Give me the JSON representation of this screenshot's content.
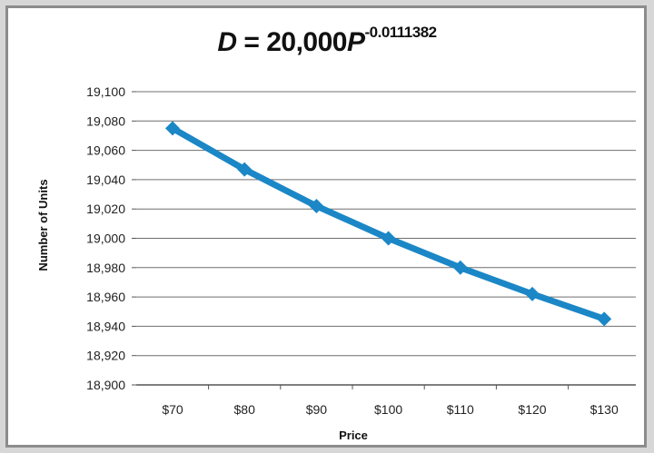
{
  "chart_data": {
    "type": "line",
    "title": {
      "var": "D",
      "eq": " = 20,000",
      "base": "P",
      "exponent": "-0.0111382"
    },
    "xlabel": "Price",
    "ylabel": "Number of Units",
    "categories": [
      "$70",
      "$80",
      "$90",
      "$100",
      "$110",
      "$120",
      "$130"
    ],
    "series": [
      {
        "values": [
          19075,
          19047,
          19022,
          19000,
          18980,
          18962,
          18945
        ]
      }
    ],
    "ylim": [
      18900,
      19100
    ],
    "ystep": 20,
    "grid": true,
    "legend": "none",
    "colors": {
      "series": "#1b87c6",
      "grid": "#6f6f6f",
      "axis": "#555555"
    }
  }
}
